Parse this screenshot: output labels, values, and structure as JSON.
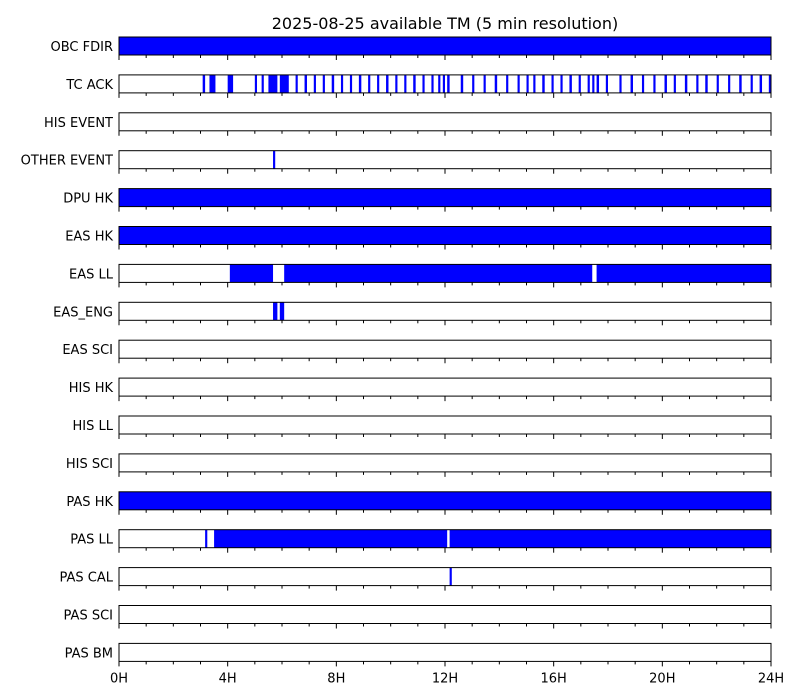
{
  "chart_data": {
    "type": "timeline",
    "title": "2025-08-25 available TM (5 min resolution)",
    "x_unit": "hours",
    "x_range": [
      0,
      24
    ],
    "x_ticks": [
      {
        "value": 0,
        "label": "0H"
      },
      {
        "value": 4,
        "label": "4H"
      },
      {
        "value": 8,
        "label": "8H"
      },
      {
        "value": 12,
        "label": "12H"
      },
      {
        "value": 16,
        "label": "16H"
      },
      {
        "value": 20,
        "label": "20H"
      },
      {
        "value": 24,
        "label": "24H"
      }
    ],
    "minor_tick_step_hours": 1,
    "fill_color": "#0000ff",
    "rows": [
      {
        "label": "OBC FDIR",
        "intervals": [
          [
            0,
            24
          ]
        ]
      },
      {
        "label": "TC ACK",
        "intervals": [
          [
            3.08,
            3.17
          ],
          [
            3.33,
            3.55
          ],
          [
            4.0,
            4.2
          ],
          [
            5.0,
            5.08
          ],
          [
            5.25,
            5.33
          ],
          [
            5.5,
            5.83
          ],
          [
            5.92,
            6.25
          ],
          [
            6.5,
            6.58
          ],
          [
            6.83,
            6.92
          ],
          [
            7.17,
            7.25
          ],
          [
            7.5,
            7.58
          ],
          [
            7.83,
            7.92
          ],
          [
            8.17,
            8.25
          ],
          [
            8.5,
            8.58
          ],
          [
            8.83,
            8.92
          ],
          [
            9.17,
            9.25
          ],
          [
            9.5,
            9.58
          ],
          [
            9.83,
            9.92
          ],
          [
            10.17,
            10.25
          ],
          [
            10.5,
            10.58
          ],
          [
            10.83,
            10.92
          ],
          [
            11.17,
            11.25
          ],
          [
            11.5,
            11.58
          ],
          [
            11.75,
            11.83
          ],
          [
            11.92,
            12.0
          ],
          [
            12.08,
            12.17
          ],
          [
            12.58,
            12.67
          ],
          [
            13.0,
            13.08
          ],
          [
            13.42,
            13.5
          ],
          [
            13.83,
            13.92
          ],
          [
            14.25,
            14.33
          ],
          [
            14.67,
            14.75
          ],
          [
            15.0,
            15.08
          ],
          [
            15.25,
            15.33
          ],
          [
            15.58,
            15.67
          ],
          [
            15.92,
            16.0
          ],
          [
            16.25,
            16.33
          ],
          [
            16.58,
            16.67
          ],
          [
            16.92,
            17.0
          ],
          [
            17.25,
            17.33
          ],
          [
            17.42,
            17.5
          ],
          [
            17.58,
            17.67
          ],
          [
            17.92,
            18.0
          ],
          [
            18.42,
            18.5
          ],
          [
            18.83,
            18.92
          ],
          [
            19.25,
            19.33
          ],
          [
            19.67,
            19.75
          ],
          [
            20.08,
            20.17
          ],
          [
            20.42,
            20.5
          ],
          [
            20.83,
            20.92
          ],
          [
            21.25,
            21.33
          ],
          [
            21.58,
            21.67
          ],
          [
            22.0,
            22.08
          ],
          [
            22.42,
            22.5
          ],
          [
            22.83,
            22.92
          ],
          [
            23.25,
            23.33
          ],
          [
            23.58,
            23.67
          ],
          [
            23.92,
            24.0
          ]
        ]
      },
      {
        "label": "HIS EVENT",
        "intervals": []
      },
      {
        "label": "OTHER EVENT",
        "intervals": [
          [
            5.67,
            5.75
          ]
        ]
      },
      {
        "label": "DPU HK",
        "intervals": [
          [
            0,
            24
          ]
        ]
      },
      {
        "label": "EAS HK",
        "intervals": [
          [
            0,
            24
          ]
        ]
      },
      {
        "label": "EAS LL",
        "intervals": [
          [
            4.08,
            5.67
          ],
          [
            6.08,
            17.42
          ],
          [
            17.58,
            24
          ]
        ]
      },
      {
        "label": "EAS_ENG",
        "intervals": [
          [
            5.67,
            5.83
          ],
          [
            5.92,
            6.08
          ]
        ]
      },
      {
        "label": "EAS SCI",
        "intervals": []
      },
      {
        "label": "HIS HK",
        "intervals": []
      },
      {
        "label": "HIS LL",
        "intervals": []
      },
      {
        "label": "HIS SCI",
        "intervals": []
      },
      {
        "label": "PAS HK",
        "intervals": [
          [
            0,
            24
          ]
        ]
      },
      {
        "label": "PAS LL",
        "intervals": [
          [
            3.17,
            3.25
          ],
          [
            3.5,
            12.08
          ],
          [
            12.17,
            24
          ]
        ]
      },
      {
        "label": "PAS CAL",
        "intervals": [
          [
            12.17,
            12.25
          ]
        ]
      },
      {
        "label": "PAS SCI",
        "intervals": []
      },
      {
        "label": "PAS BM",
        "intervals": []
      }
    ]
  }
}
